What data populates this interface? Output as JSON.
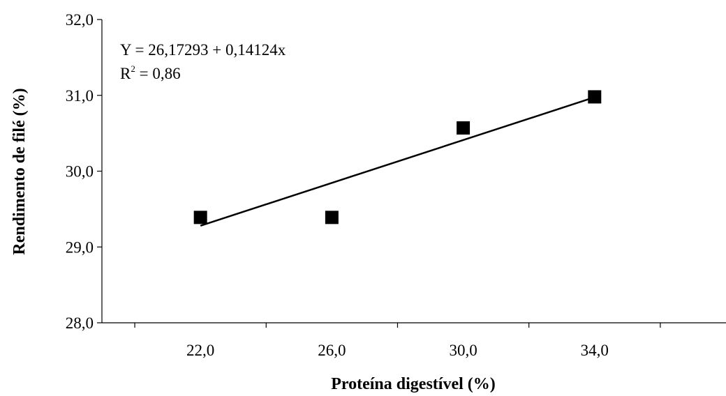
{
  "chart_data": {
    "type": "scatter",
    "title": "",
    "xlabel": "Proteína digestível (%)",
    "ylabel": "Rendimento de filé (%)",
    "xlim": [
      19.0,
      38.0
    ],
    "ylim": [
      28.0,
      32.0
    ],
    "x_ticks": [
      22.0,
      26.0,
      30.0,
      34.0
    ],
    "x_minor_ticks": [
      20.0,
      24.0,
      28.0,
      32.0,
      36.0
    ],
    "x_tick_labels": [
      "22,0",
      "26,0",
      "30,0",
      "34,0"
    ],
    "y_ticks": [
      28.0,
      29.0,
      30.0,
      31.0,
      32.0
    ],
    "y_tick_labels": [
      "28,0",
      "29,0",
      "30,0",
      "31,0",
      "32,0"
    ],
    "points": [
      {
        "x": 22.0,
        "y": 29.39
      },
      {
        "x": 26.0,
        "y": 29.39
      },
      {
        "x": 30.0,
        "y": 30.57
      },
      {
        "x": 34.0,
        "y": 30.98
      }
    ],
    "trendline": {
      "intercept": 26.17293,
      "slope": 0.14124,
      "x_range": [
        22.0,
        34.0
      ]
    },
    "equation": {
      "line1": "Y = 26,17293 + 0,14124x",
      "r2_prefix": "R",
      "r2_sup": "2",
      "r2_value": " = 0,86"
    },
    "grid": false,
    "legend": "none",
    "marker": "square",
    "color": "#000000"
  }
}
